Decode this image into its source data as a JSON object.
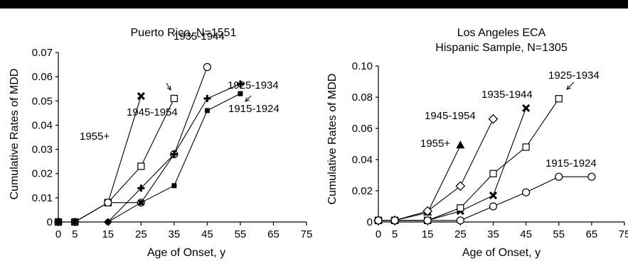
{
  "chart_data": [
    {
      "type": "line",
      "title": "Puerto Rico, N=1551",
      "xlabel": "Age of Onset, y",
      "ylabel": "Cumulative Rates of MDD",
      "xlim": [
        0,
        75
      ],
      "ylim": [
        0,
        0.07
      ],
      "x_ticks": [
        "0",
        "5",
        "15",
        "25",
        "35",
        "45",
        "55",
        "65",
        "75"
      ],
      "y_ticks": [
        "0",
        "0.01",
        "0.02",
        "0.03",
        "0.04",
        "0.05",
        "0.06",
        "0.07"
      ],
      "grid": false,
      "series": [
        {
          "name": "1955+",
          "marker": "x",
          "x": [
            0,
            5,
            15,
            25
          ],
          "y": [
            0,
            0,
            0.008,
            0.052
          ]
        },
        {
          "name": "1945-1954",
          "marker": "open-square",
          "x": [
            0,
            5,
            15,
            25,
            35
          ],
          "y": [
            0,
            0,
            0.008,
            0.023,
            0.051
          ]
        },
        {
          "name": "1935-1944",
          "marker": "open-circle",
          "x": [
            0,
            5,
            15,
            25,
            35,
            45
          ],
          "y": [
            0,
            0,
            0.008,
            0.008,
            0.028,
            0.064
          ]
        },
        {
          "name": "1925-1934",
          "marker": "plus",
          "x": [
            0,
            5,
            15,
            25,
            35,
            45,
            55
          ],
          "y": [
            0,
            0,
            0,
            0.014,
            0.028,
            0.051,
            0.057
          ]
        },
        {
          "name": "1915-1924",
          "marker": "filled-square",
          "x": [
            0,
            5,
            15,
            25,
            35,
            45,
            55
          ],
          "y": [
            0,
            0,
            0,
            0.008,
            0.015,
            0.046,
            0.053
          ]
        }
      ]
    },
    {
      "type": "line",
      "title": "Los Angeles ECA",
      "subtitle": "Hispanic Sample, N=1305",
      "xlabel": "Age of Onset, y",
      "ylabel": "Cumulative Rates of MDD",
      "xlim": [
        0,
        75
      ],
      "ylim": [
        0,
        0.1
      ],
      "x_ticks": [
        "0",
        "5",
        "15",
        "25",
        "35",
        "45",
        "55",
        "65",
        "75"
      ],
      "y_ticks": [
        "0",
        "0.02",
        "0.04",
        "0.06",
        "0.08",
        "0.10"
      ],
      "grid": false,
      "series": [
        {
          "name": "1955+",
          "marker": "filled-triangle",
          "x": [
            0,
            5,
            15,
            25
          ],
          "y": [
            0.001,
            0.001,
            0.006,
            0.049
          ]
        },
        {
          "name": "1945-1954",
          "marker": "open-diamond",
          "x": [
            0,
            5,
            15,
            25,
            35
          ],
          "y": [
            0.001,
            0.001,
            0.007,
            0.023,
            0.066
          ]
        },
        {
          "name": "1935-1944",
          "marker": "x",
          "x": [
            0,
            5,
            15,
            25,
            35,
            45
          ],
          "y": [
            0.001,
            0.001,
            0.001,
            0.007,
            0.017,
            0.073
          ]
        },
        {
          "name": "1925-1934",
          "marker": "open-square",
          "x": [
            0,
            5,
            15,
            25,
            35,
            45,
            55
          ],
          "y": [
            0.001,
            0.001,
            0.001,
            0.009,
            0.031,
            0.048,
            0.079
          ]
        },
        {
          "name": "1915-1924",
          "marker": "open-circle",
          "x": [
            0,
            5,
            15,
            25,
            35,
            45,
            55,
            65
          ],
          "y": [
            0.001,
            0.001,
            0.001,
            0.001,
            0.01,
            0.019,
            0.029,
            0.029
          ]
        }
      ]
    }
  ]
}
